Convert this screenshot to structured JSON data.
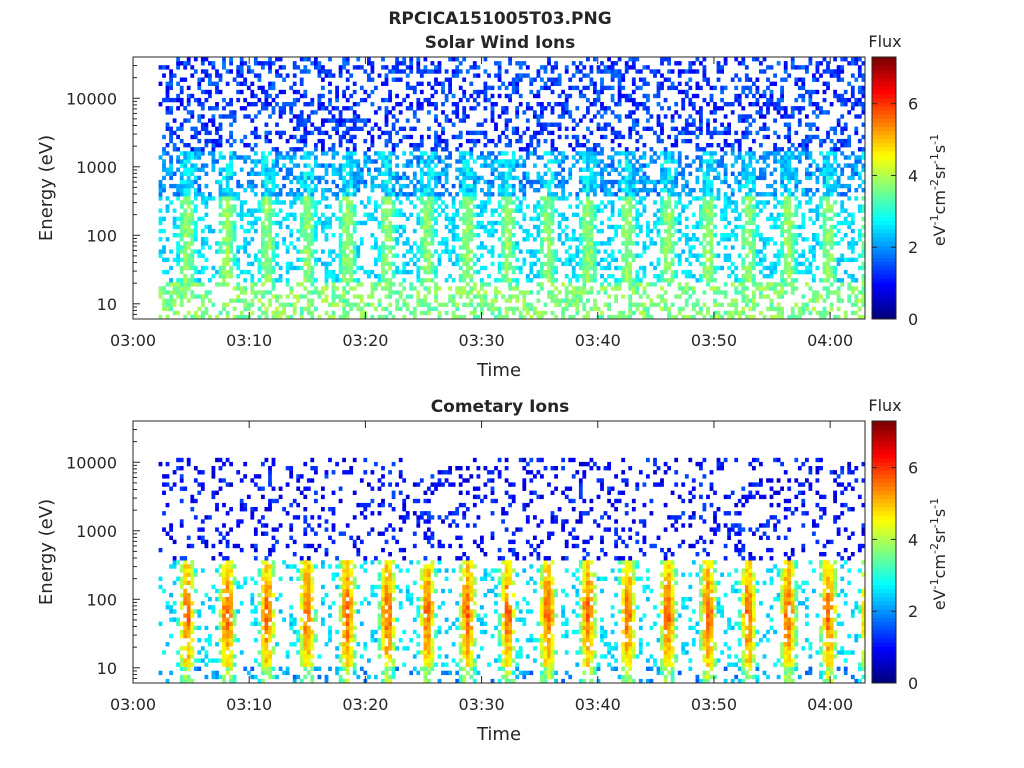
{
  "figure_title": "RPCICA151005T03.PNG",
  "colormap": [
    "#00007f",
    "#0000ff",
    "#007fff",
    "#00ffff",
    "#7fff7f",
    "#ffff00",
    "#ff7f00",
    "#ff0000",
    "#7f0000"
  ],
  "chart_data": [
    {
      "type": "heatmap",
      "title": "Solar Wind Ions",
      "xlabel": "Time",
      "ylabel": "Energy (eV)",
      "y_scale": "log",
      "x_ticks": [
        "03:00",
        "03:10",
        "03:20",
        "03:30",
        "03:40",
        "03:50",
        "04:00"
      ],
      "y_ticks": [
        "10",
        "100",
        "1000",
        "10000"
      ],
      "xlim": [
        "03:00",
        "04:03"
      ],
      "ylim": [
        6,
        40000
      ],
      "colorbar": {
        "title": "Flux",
        "label": "eV-1cm-2sr-1s-1",
        "range": [
          0,
          7.3
        ],
        "ticks": [
          "0",
          "2",
          "4",
          "6"
        ]
      }
    },
    {
      "type": "heatmap",
      "title": "Cometary Ions",
      "xlabel": "Time",
      "ylabel": "Energy (eV)",
      "y_scale": "log",
      "x_ticks": [
        "03:00",
        "03:10",
        "03:20",
        "03:30",
        "03:40",
        "03:50",
        "04:00"
      ],
      "y_ticks": [
        "10",
        "100",
        "1000",
        "10000"
      ],
      "xlim": [
        "03:00",
        "04:03"
      ],
      "ylim": [
        6,
        40000
      ],
      "colorbar": {
        "title": "Flux",
        "label": "eV-1cm-2sr-1s-1",
        "range": [
          0,
          7.3
        ],
        "ticks": [
          "0",
          "2",
          "4",
          "6"
        ]
      }
    }
  ]
}
